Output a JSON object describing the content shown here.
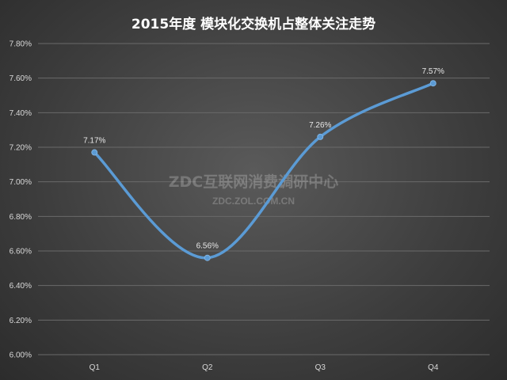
{
  "chart_data": {
    "type": "line",
    "title": "2015年度 模块化交换机占整体关注走势",
    "categories": [
      "Q1",
      "Q2",
      "Q3",
      "Q4"
    ],
    "series": [
      {
        "values": [
          7.17,
          6.56,
          7.26,
          7.57
        ],
        "color": "#5b9bd5"
      }
    ],
    "data_labels": [
      "7.17%",
      "6.56%",
      "7.26%",
      "7.57%"
    ],
    "ylim": [
      6.0,
      7.8
    ],
    "yticks": [
      "6.00%",
      "6.20%",
      "6.40%",
      "6.60%",
      "6.80%",
      "7.00%",
      "7.20%",
      "7.40%",
      "7.60%",
      "7.80%"
    ],
    "grid": true,
    "smooth": true
  },
  "watermark": {
    "line1": "ZDC互联网消费调研中心",
    "line2": "ZDC.ZOL.COM.CN"
  }
}
